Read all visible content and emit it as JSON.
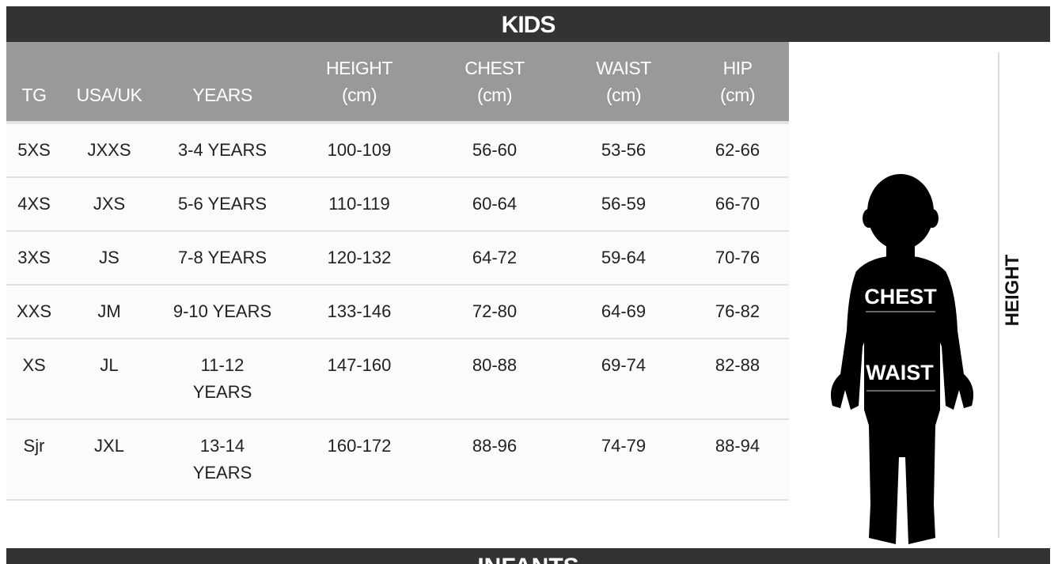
{
  "title": "KIDS",
  "columns": [
    {
      "line1": "",
      "line2": "TG"
    },
    {
      "line1": "",
      "line2": "USA/UK"
    },
    {
      "line1": "",
      "line2": "YEARS"
    },
    {
      "line1": "HEIGHT",
      "line2": "(cm)"
    },
    {
      "line1": "CHEST",
      "line2": "(cm)"
    },
    {
      "line1": "WAIST",
      "line2": "(cm)"
    },
    {
      "line1": "HIP",
      "line2": "(cm)"
    }
  ],
  "rows": [
    {
      "tg": "5XS",
      "usa_uk": "JXXS",
      "years": "3-4 YEARS",
      "years2": "",
      "height": "100-109",
      "chest": "56-60",
      "waist": "53-56",
      "hip": "62-66"
    },
    {
      "tg": "4XS",
      "usa_uk": "JXS",
      "years": "5-6 YEARS",
      "years2": "",
      "height": "110-119",
      "chest": "60-64",
      "waist": "56-59",
      "hip": "66-70"
    },
    {
      "tg": "3XS",
      "usa_uk": "JS",
      "years": "7-8 YEARS",
      "years2": "",
      "height": "120-132",
      "chest": "64-72",
      "waist": "59-64",
      "hip": "70-76"
    },
    {
      "tg": "XXS",
      "usa_uk": "JM",
      "years": "9-10 YEARS",
      "years2": "",
      "height": "133-146",
      "chest": "72-80",
      "waist": "64-69",
      "hip": "76-82"
    },
    {
      "tg": "XS",
      "usa_uk": "JL",
      "years": "11-12",
      "years2": "YEARS",
      "height": "147-160",
      "chest": "80-88",
      "waist": "69-74",
      "hip": "82-88"
    },
    {
      "tg": "Sjr",
      "usa_uk": "JXL",
      "years": "13-14",
      "years2": "YEARS",
      "height": "160-172",
      "chest": "88-96",
      "waist": "74-79",
      "hip": "88-94"
    }
  ],
  "figure": {
    "chest_label": "CHEST",
    "waist_label": "WAIST",
    "height_label": "HEIGHT"
  },
  "next_section_title": "INFANTS"
}
